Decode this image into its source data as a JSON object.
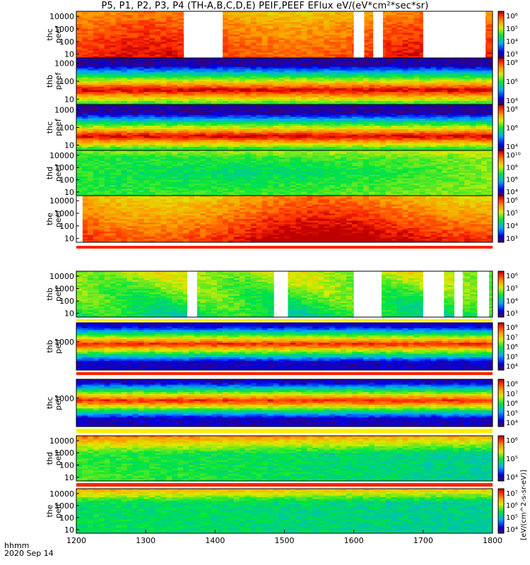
{
  "title": "P5, P1, P2, P3, P4 (TH-A,B,C,D,E) PEIF,PEEF EFlux eV/(eV*cm²*sec*sr)",
  "footer": {
    "time_label": "hhmm",
    "date_label": "2020 Sep 14"
  },
  "chart_data": {
    "type": "heatmap",
    "x_ticks": [
      "1200",
      "1300",
      "1400",
      "1500",
      "1600",
      "1700",
      "1800"
    ],
    "x_range": [
      1200,
      1800
    ],
    "colorbar_label": "[eV/(cm^2-s-sr-eV)]",
    "panels": [
      {
        "label": [
          "thc",
          "peef"
        ],
        "yticks": [
          "10",
          "100",
          "1000",
          "10000"
        ],
        "ylog": [
          0.7,
          4.4
        ],
        "cbar_ticks": [
          "10³",
          "10⁴",
          "10⁵",
          "10⁶"
        ],
        "gaps": [
          [
            1355,
            1411
          ],
          [
            1600,
            1615
          ],
          [
            1628,
            1642
          ],
          [
            1700,
            1790
          ]
        ]
      },
      {
        "label": [
          "thb",
          "peef"
        ],
        "yticks": [
          "10",
          "100",
          "1000"
        ],
        "ylog": [
          0.7,
          3.3
        ],
        "cbar_ticks": [
          "10⁴",
          "10⁶",
          "10⁸"
        ],
        "gaps": []
      },
      {
        "label": [
          "thc",
          "peef"
        ],
        "yticks": [
          "10",
          "100",
          "1000"
        ],
        "ylog": [
          0.7,
          3.3
        ],
        "cbar_ticks": [
          "10⁴",
          "10⁶",
          "10⁸"
        ],
        "gaps": []
      },
      {
        "label": [
          "thd",
          "peef"
        ],
        "yticks": [
          "10",
          "100",
          "1000",
          "10000"
        ],
        "ylog": [
          0.7,
          4.4
        ],
        "cbar_ticks": [
          "10⁴",
          "10⁶",
          "10⁸",
          "10¹⁰"
        ],
        "gaps": []
      },
      {
        "label": [
          "the",
          "peef"
        ],
        "yticks": [
          "10",
          "100",
          "1000",
          "10000"
        ],
        "ylog": [
          0.7,
          4.4
        ],
        "cbar_ticks": [
          "10³",
          "10⁴",
          "10⁵",
          "10⁶"
        ],
        "gaps": [
          [
            1200,
            1209
          ]
        ]
      },
      {
        "label": [
          "thb",
          "peif"
        ],
        "yticks": [
          "10",
          "100",
          "1000",
          "10000"
        ],
        "ylog": [
          0.7,
          4.4
        ],
        "cbar_ticks": [
          "10³",
          "10⁴",
          "10⁵",
          "10⁶"
        ],
        "gaps": [
          [
            1360,
            1374
          ],
          [
            1485,
            1505
          ],
          [
            1600,
            1640
          ],
          [
            1700,
            1730
          ],
          [
            1745,
            1757
          ],
          [
            1778,
            1795
          ]
        ]
      },
      {
        "label": [
          "thb",
          "peif"
        ],
        "yticks": [
          "1000"
        ],
        "ylog": [
          1.5,
          4.0
        ],
        "cbar_ticks": [
          "10⁴",
          "10⁵",
          "10⁶",
          "10⁷",
          "10⁸"
        ],
        "gaps": []
      },
      {
        "label": [
          "thc",
          "peif"
        ],
        "yticks": [
          "1000"
        ],
        "ylog": [
          1.5,
          4.0
        ],
        "cbar_ticks": [
          "10⁴",
          "10⁵",
          "10⁶",
          "10⁷",
          "10⁸"
        ],
        "gaps": []
      },
      {
        "label": [
          "thd",
          "peif"
        ],
        "yticks": [
          "10",
          "100",
          "1000",
          "10000"
        ],
        "ylog": [
          0.7,
          4.4
        ],
        "cbar_ticks": [
          "10⁴",
          "10⁵",
          "10⁶"
        ],
        "gaps": []
      },
      {
        "label": [
          "the",
          "peif"
        ],
        "yticks": [
          "10",
          "100",
          "1000",
          "10000"
        ],
        "ylog": [
          0.7,
          4.4
        ],
        "cbar_ticks": [
          "10⁴",
          "10⁵",
          "10⁶",
          "10⁷"
        ],
        "gaps": []
      }
    ]
  }
}
